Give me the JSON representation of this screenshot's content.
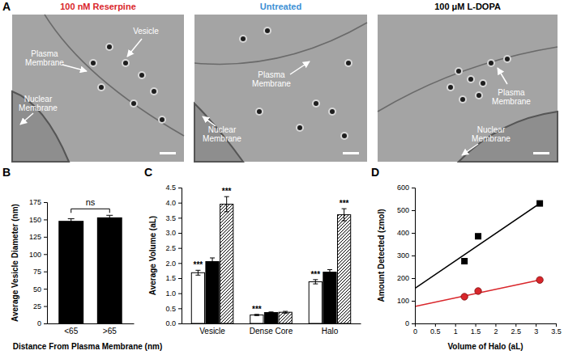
{
  "figure": {
    "label": "A",
    "images": [
      {
        "title": "100 nM Reserpine",
        "color": "#d9262b",
        "labels": [
          "Plasma Membrane",
          "Vesicle",
          "Nuclear Membrane"
        ]
      },
      {
        "title": "Untreated",
        "color": "#3b8fd4",
        "labels": [
          "Plasma Membrane",
          "Nuclear Membrane"
        ]
      },
      {
        "title": "100 μM L-DOPA",
        "color": "#000000",
        "labels": [
          "Plasma Membrane",
          "Nuclear Membrane"
        ]
      }
    ]
  },
  "chart_data": [
    {
      "type": "bar",
      "title": "B",
      "categories": [
        "<65",
        ">65"
      ],
      "values": [
        148,
        153
      ],
      "errors": [
        3,
        3
      ],
      "color": "#000000",
      "x_label": "Distance From Plasma Membrane (nm)",
      "y_label": "Average Vesicle Diameter (nm)",
      "ylim": [
        0,
        175
      ],
      "yticks": [
        0,
        25,
        50,
        75,
        100,
        125,
        150,
        175
      ],
      "annotations": [
        "ns"
      ]
    },
    {
      "type": "bar",
      "title": "C",
      "categories": [
        "Vesicle",
        "Dense Core",
        "Halo"
      ],
      "y_label": "Average Volume (aL)",
      "ylim": [
        0,
        4.5
      ],
      "yticks": [
        {
          "value": 0,
          "label": "0.0"
        },
        0.5,
        {
          "value": 1,
          "label": "1.0"
        },
        1.5,
        {
          "value": 2,
          "label": "2.0"
        },
        2.5,
        {
          "value": 3,
          "label": "3.0"
        },
        3.5,
        {
          "value": 4,
          "label": "4.0"
        },
        4.5
      ],
      "series": [
        {
          "color": "#ffffff",
          "values": [
            1.68,
            0.28,
            1.38
          ],
          "errors": [
            0.08,
            0.02,
            0.07
          ],
          "significance": [
            "***",
            "***",
            "***"
          ]
        },
        {
          "color": "#000000",
          "values": [
            2.05,
            0.36,
            1.7
          ],
          "errors": [
            0.12,
            0.02,
            0.08
          ]
        },
        {
          "color": "#000000",
          "marker": "hatch",
          "values": [
            3.95,
            0.37,
            3.6
          ],
          "errors": [
            0.25,
            0.03,
            0.2
          ],
          "significance": [
            "***",
            null,
            "***"
          ]
        }
      ]
    },
    {
      "type": "scatter",
      "title": "D",
      "x_label": "Volume of Halo (aL)",
      "y_label": "Amount Detected (zmol)",
      "xlim": [
        0,
        3.5
      ],
      "xticks": [
        0,
        0.5,
        1,
        1.5,
        2,
        2.5,
        3,
        3.5
      ],
      "ylim": [
        0,
        600
      ],
      "yticks": [
        0,
        100,
        200,
        300,
        400,
        500,
        600
      ],
      "series": [
        {
          "type": "scatter",
          "marker": "square",
          "color": "#000000",
          "x": [
            1.23,
            1.57,
            3.1
          ],
          "values": [
            275,
            385,
            530
          ]
        },
        {
          "type": "scatter",
          "marker": "circle",
          "color": "#d9262b",
          "x": [
            1.23,
            1.57,
            3.1
          ],
          "values": [
            118,
            143,
            192
          ]
        },
        {
          "type": "line",
          "color": "#000000",
          "x": [
            0,
            3.1
          ],
          "values": [
            155,
            530
          ]
        },
        {
          "type": "line",
          "color": "#d9262b",
          "x": [
            0,
            3.1
          ],
          "values": [
            75,
            192
          ]
        }
      ]
    }
  ]
}
